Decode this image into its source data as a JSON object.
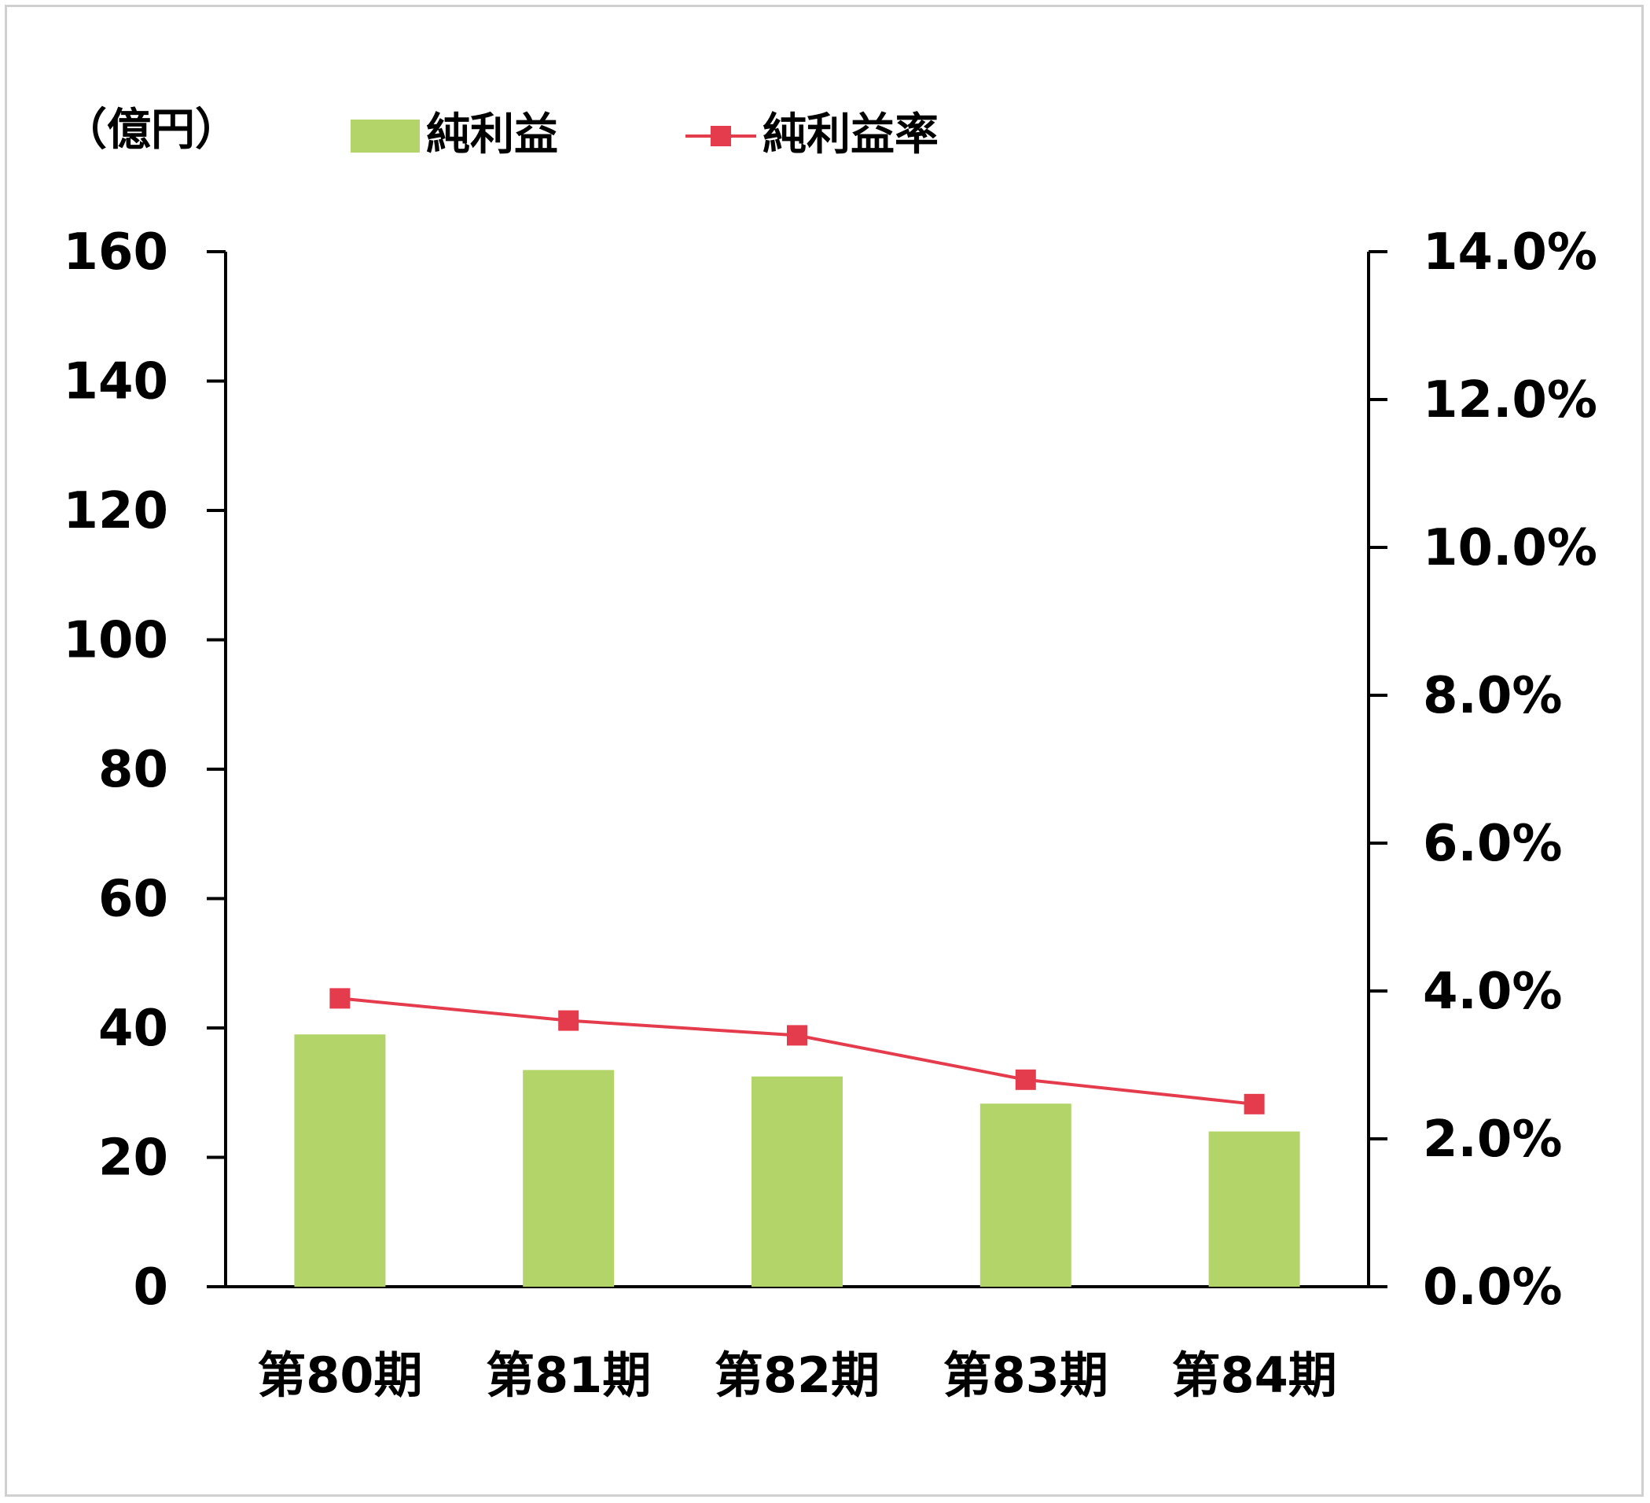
{
  "unit_label": "（億円）",
  "colors": {
    "bar": "#b2d469",
    "line": "#e43c4c",
    "axis": "#000000",
    "frame": "#d0d0d0"
  },
  "chart_data": {
    "type": "bar",
    "categories": [
      "第80期",
      "第81期",
      "第82期",
      "第83期",
      "第84期"
    ],
    "series": [
      {
        "name": "純利益",
        "type": "bar",
        "axis": "left",
        "values": [
          39,
          33.5,
          32.5,
          28.3,
          24
        ]
      },
      {
        "name": "純利益率",
        "type": "line",
        "axis": "right",
        "values": [
          3.9,
          3.6,
          3.4,
          2.8,
          2.47
        ]
      }
    ],
    "y_left": {
      "min": 0,
      "max": 160,
      "step": 20,
      "ticks": [
        "0",
        "20",
        "40",
        "60",
        "80",
        "100",
        "120",
        "140",
        "160"
      ]
    },
    "y_right": {
      "min": 0,
      "max": 14,
      "step": 2,
      "ticks": [
        "0.0%",
        "2.0%",
        "4.0%",
        "6.0%",
        "8.0%",
        "10.0%",
        "12.0%",
        "14.0%"
      ]
    },
    "legend_position": "top",
    "grid": false
  }
}
